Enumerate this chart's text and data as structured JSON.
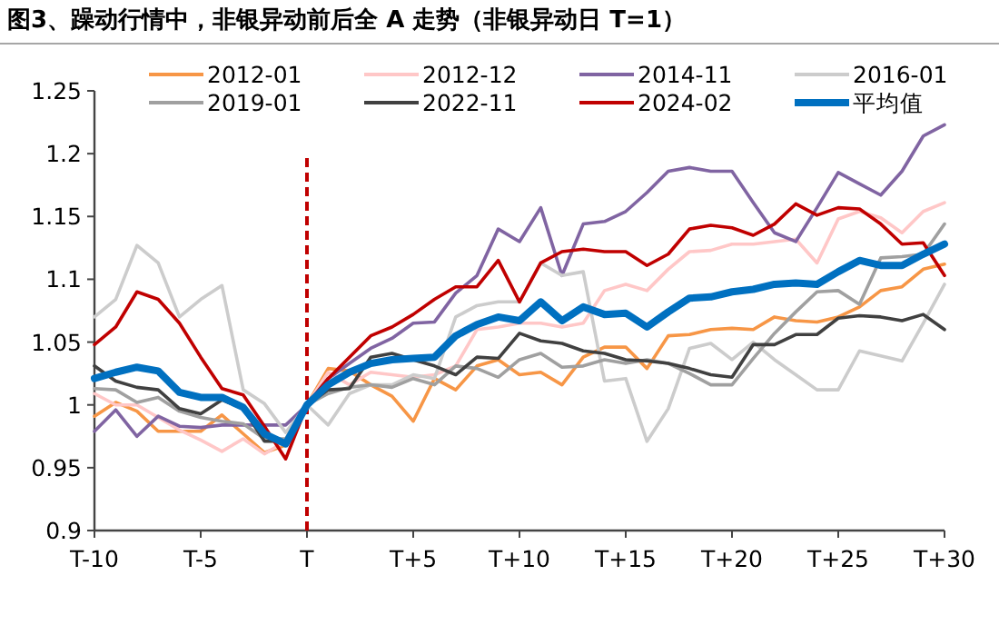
{
  "chart_data": {
    "type": "line",
    "title": "图3、躁动行情中，非银异动前后全 A 走势（非银异动日 T=1）",
    "categories": [
      "T-10",
      null,
      null,
      null,
      null,
      "T-5",
      null,
      null,
      null,
      null,
      "T",
      null,
      null,
      null,
      null,
      "T+5",
      null,
      null,
      null,
      null,
      "T+10",
      null,
      null,
      null,
      null,
      "T+15",
      null,
      null,
      null,
      null,
      "T+20",
      null,
      null,
      null,
      null,
      "T+25",
      null,
      null,
      null,
      null,
      "T+30"
    ],
    "ylim": [
      0.9,
      1.25
    ],
    "yticks": [
      0.9,
      0.95,
      1,
      1.05,
      1.1,
      1.15,
      1.2,
      1.25
    ],
    "legend": "top",
    "grid": false,
    "ref_lines": [
      {
        "axis": "x",
        "value": "T",
        "color": "#c00000",
        "line_style": "dashed"
      }
    ],
    "series": [
      {
        "name": "2012-01",
        "color": "#f79646",
        "values": [
          0.991,
          1.002,
          0.995,
          0.979,
          0.979,
          0.979,
          0.992,
          0.977,
          0.962,
          0.968,
          1.0,
          1.029,
          1.027,
          1.016,
          1.007,
          0.987,
          1.021,
          1.012,
          1.031,
          1.036,
          1.024,
          1.026,
          1.016,
          1.038,
          1.046,
          1.046,
          1.029,
          1.055,
          1.056,
          1.06,
          1.061,
          1.06,
          1.07,
          1.067,
          1.066,
          1.07,
          1.078,
          1.091,
          1.094,
          1.108,
          1.112
        ]
      },
      {
        "name": "2012-12",
        "color": "#ffc7c7",
        "values": [
          1.009,
          1.0,
          1.0,
          0.99,
          0.98,
          0.972,
          0.963,
          0.973,
          0.961,
          0.971,
          1.0,
          1.026,
          1.016,
          1.026,
          1.024,
          1.022,
          1.024,
          1.031,
          1.06,
          1.062,
          1.065,
          1.065,
          1.062,
          1.065,
          1.091,
          1.096,
          1.091,
          1.108,
          1.122,
          1.123,
          1.128,
          1.128,
          1.13,
          1.132,
          1.113,
          1.148,
          1.154,
          1.149,
          1.137,
          1.154,
          1.161
        ]
      },
      {
        "name": "2014-11",
        "color": "#8064a2",
        "values": [
          0.979,
          0.996,
          0.975,
          0.991,
          0.983,
          0.982,
          0.984,
          0.984,
          0.984,
          0.984,
          1.0,
          1.021,
          1.033,
          1.045,
          1.053,
          1.065,
          1.066,
          1.089,
          1.103,
          1.14,
          1.13,
          1.157,
          1.103,
          1.144,
          1.146,
          1.154,
          1.169,
          1.186,
          1.189,
          1.186,
          1.186,
          1.161,
          1.137,
          1.13,
          1.157,
          1.185,
          1.176,
          1.167,
          1.186,
          1.214,
          1.223
        ]
      },
      {
        "name": "2016-01",
        "color": "#cccccc",
        "values": [
          1.07,
          1.084,
          1.127,
          1.113,
          1.07,
          1.084,
          1.095,
          1.012,
          1.001,
          0.978,
          1.0,
          0.984,
          1.009,
          1.016,
          1.016,
          1.024,
          1.021,
          1.07,
          1.079,
          1.082,
          1.082,
          1.113,
          1.103,
          1.106,
          1.019,
          1.021,
          0.971,
          0.997,
          1.045,
          1.049,
          1.036,
          1.05,
          1.036,
          1.024,
          1.012,
          1.012,
          1.043,
          1.039,
          1.035,
          1.065,
          1.096
        ]
      },
      {
        "name": "2019-01",
        "color": "#a0a0a0",
        "values": [
          1.013,
          1.012,
          1.002,
          1.006,
          0.995,
          0.99,
          0.987,
          0.985,
          0.973,
          0.973,
          1.0,
          1.009,
          1.014,
          1.016,
          1.014,
          1.021,
          1.016,
          1.031,
          1.029,
          1.022,
          1.036,
          1.041,
          1.03,
          1.031,
          1.036,
          1.033,
          1.036,
          1.033,
          1.025,
          1.016,
          1.016,
          1.037,
          1.057,
          1.074,
          1.09,
          1.091,
          1.08,
          1.117,
          1.118,
          1.12,
          1.144
        ]
      },
      {
        "name": "2022-11",
        "color": "#404040",
        "values": [
          1.031,
          1.019,
          1.014,
          1.012,
          0.997,
          0.993,
          1.004,
          0.997,
          0.971,
          0.971,
          1.0,
          1.012,
          1.013,
          1.038,
          1.041,
          1.036,
          1.031,
          1.024,
          1.038,
          1.037,
          1.057,
          1.051,
          1.049,
          1.043,
          1.041,
          1.036,
          1.035,
          1.033,
          1.029,
          1.024,
          1.022,
          1.048,
          1.048,
          1.056,
          1.056,
          1.069,
          1.071,
          1.07,
          1.067,
          1.072,
          1.06
        ]
      },
      {
        "name": "2024-02",
        "color": "#c00000",
        "values": [
          1.048,
          1.062,
          1.09,
          1.084,
          1.065,
          1.038,
          1.013,
          1.008,
          0.983,
          0.957,
          1.0,
          1.021,
          1.038,
          1.055,
          1.062,
          1.072,
          1.084,
          1.094,
          1.094,
          1.115,
          1.082,
          1.113,
          1.122,
          1.124,
          1.122,
          1.122,
          1.111,
          1.12,
          1.14,
          1.143,
          1.141,
          1.135,
          1.144,
          1.16,
          1.151,
          1.157,
          1.156,
          1.144,
          1.128,
          1.129,
          1.103
        ]
      },
      {
        "name": "平均值",
        "color": "#0070c0",
        "values": [
          1.021,
          1.026,
          1.03,
          1.027,
          1.01,
          1.006,
          1.006,
          0.998,
          0.977,
          0.969,
          1.0,
          1.016,
          1.026,
          1.033,
          1.036,
          1.037,
          1.038,
          1.055,
          1.064,
          1.07,
          1.067,
          1.082,
          1.067,
          1.078,
          1.072,
          1.073,
          1.062,
          1.074,
          1.085,
          1.086,
          1.09,
          1.092,
          1.096,
          1.097,
          1.096,
          1.106,
          1.115,
          1.111,
          1.111,
          1.12,
          1.128
        ]
      }
    ]
  }
}
